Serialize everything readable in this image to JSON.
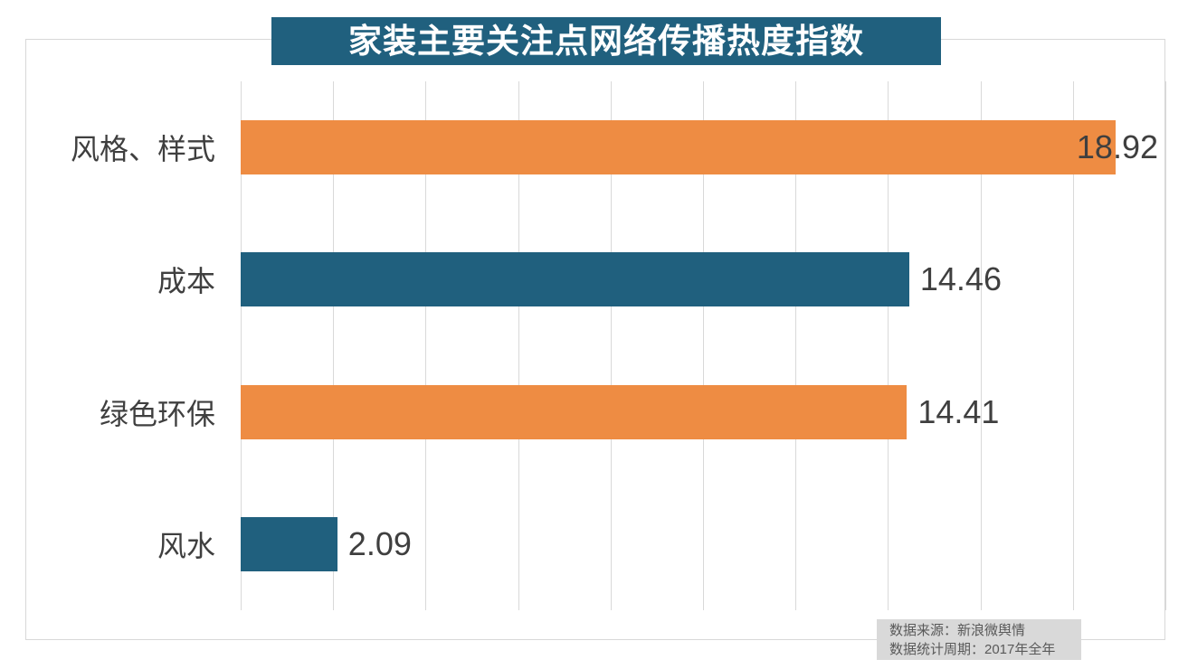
{
  "title": "家装主要关注点网络传播热度指数",
  "source_note": {
    "line1": "数据来源：新浪微舆情",
    "line2": "数据统计周期：2017年全年"
  },
  "colors": {
    "title_bg": "#20607E",
    "title_text": "#FFFFFF",
    "bar_teal": "#20607E",
    "bar_orange": "#EE8C43",
    "label_text": "#3F3F3F",
    "gridline": "#D9D9D9",
    "frame_border": "#D8D8D8",
    "source_bg": "#D9D9D9",
    "source_text": "#595959",
    "background": "#FFFFFF"
  },
  "chart_data": {
    "type": "bar",
    "orientation": "horizontal",
    "title": "家装主要关注点网络传播热度指数",
    "categories": [
      "风格、样式",
      "成本",
      "绿色环保",
      "风水"
    ],
    "values": [
      18.92,
      14.46,
      14.41,
      2.09
    ],
    "value_labels": [
      "18.92",
      "14.46",
      "14.41",
      "2.09"
    ],
    "bar_colors": [
      "#EE8C43",
      "#20607E",
      "#EE8C43",
      "#20607E"
    ],
    "xlabel": "",
    "ylabel": "",
    "xlim": [
      0,
      20
    ],
    "gridline_interval": 2,
    "grid": true,
    "legend": "none",
    "axis_tick_labels_visible": false
  }
}
